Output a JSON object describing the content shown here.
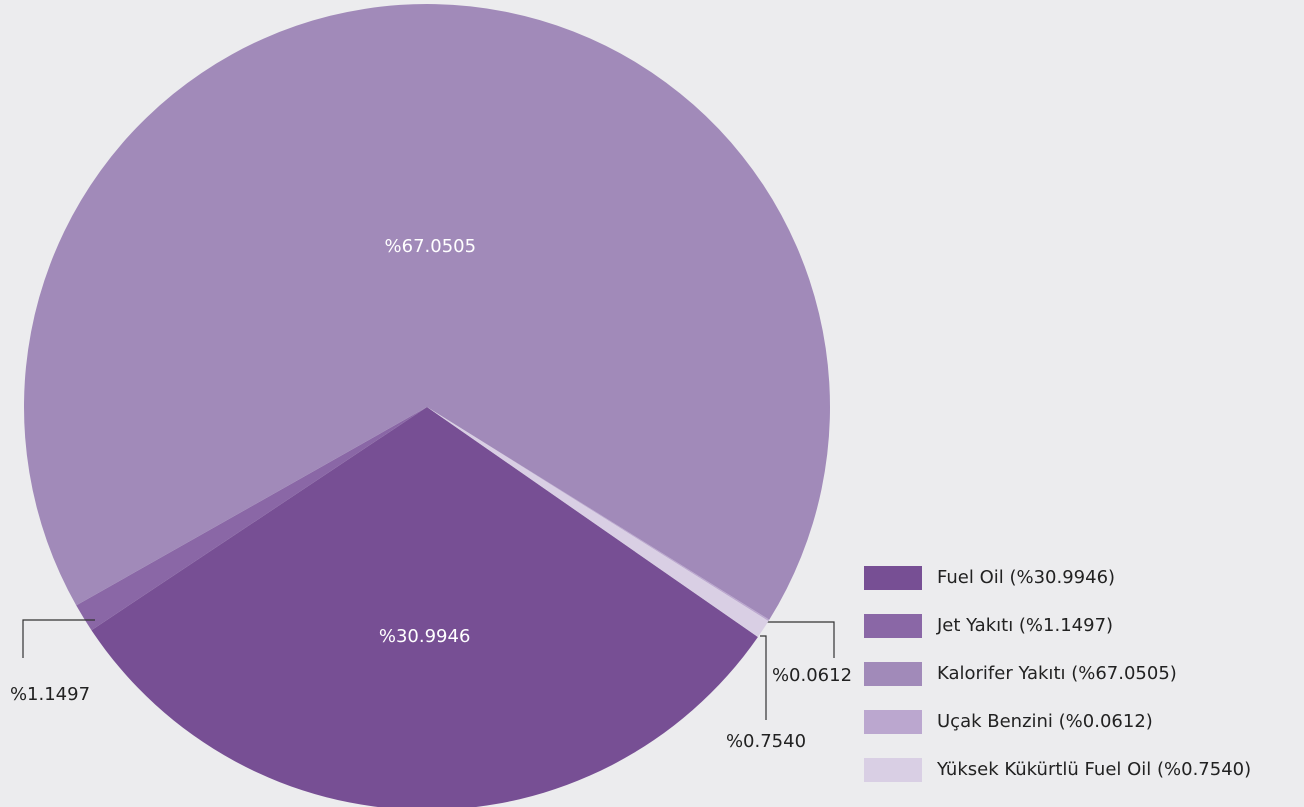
{
  "chart_data": {
    "type": "pie",
    "categories": [
      "Fuel Oil (%30.9946)",
      "Jet Yakıtı (%1.1497)",
      "Kalorifer Yakıtı (%67.0505)",
      "Uçak Benzini (%0.0612)",
      "Yüksek Kükürtlü Fuel Oil (%0.7540)"
    ],
    "values": [
      30.9946,
      1.1497,
      67.0505,
      0.0612,
      0.754
    ],
    "value_labels": [
      "%30.9946",
      "%1.1497",
      "%67.0505",
      "%0.0612",
      "%0.7540"
    ],
    "colors": [
      "#774f94",
      "#8a67a6",
      "#a18ab9",
      "#bba7cf",
      "#d9cfe4"
    ],
    "legend": "lower right"
  }
}
